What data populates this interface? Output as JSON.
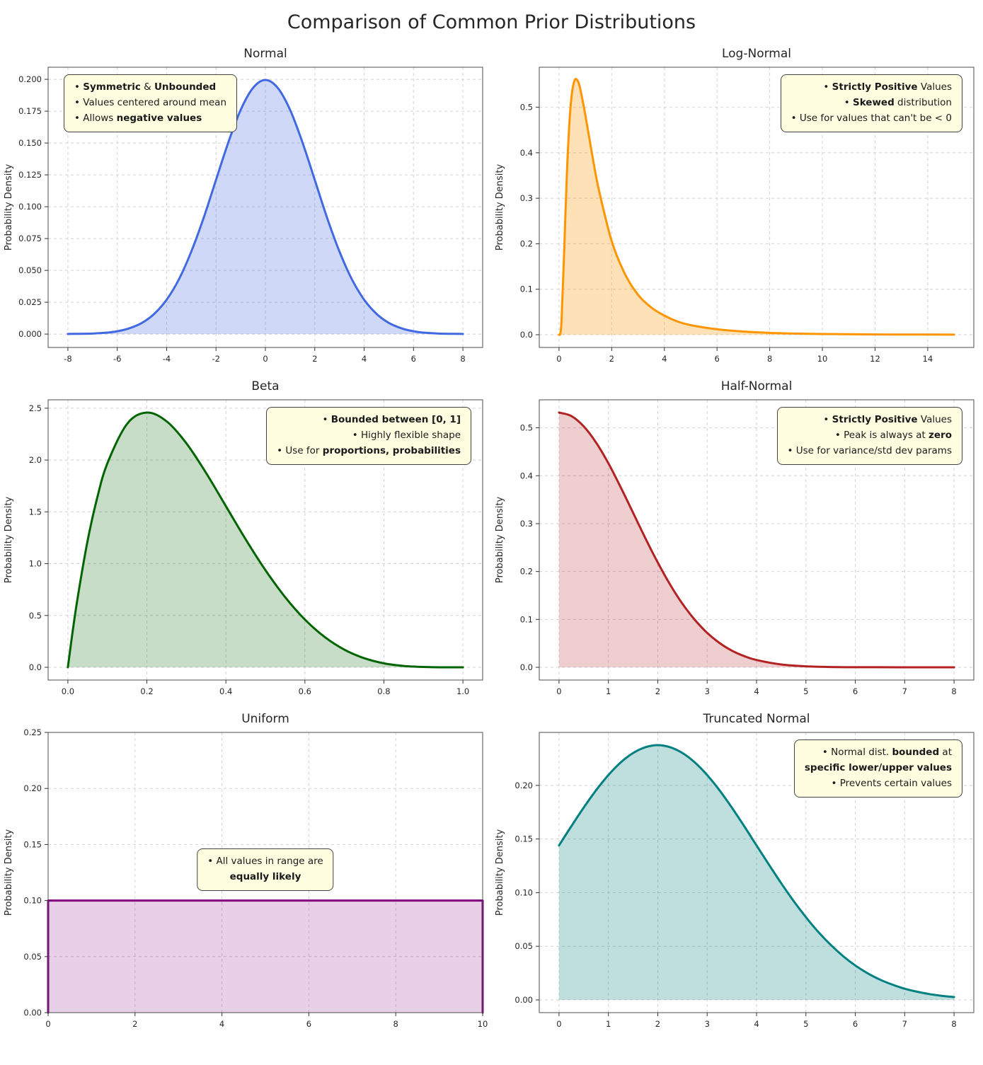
{
  "page": {
    "title": "Comparison of Common Prior Distributions"
  },
  "chart_data": [
    {
      "id": "normal",
      "type": "area",
      "title": "Normal",
      "ylabel": "Probability Density",
      "color": "#4169e1",
      "fill_opacity": 0.25,
      "line_width": 3,
      "smooth": true,
      "x": [
        -8,
        -7.5,
        -7,
        -6.5,
        -6,
        -5.5,
        -5,
        -4.5,
        -4,
        -3.5,
        -3,
        -2.5,
        -2,
        -1.5,
        -1,
        -0.5,
        0,
        0.5,
        1,
        1.5,
        2,
        2.5,
        3,
        3.5,
        4,
        4.5,
        5,
        5.5,
        6,
        6.5,
        7,
        7.5,
        8
      ],
      "y": [
        0.0001,
        0.0002,
        0.0004,
        0.001,
        0.0022,
        0.0046,
        0.0088,
        0.0159,
        0.027,
        0.0431,
        0.0648,
        0.0913,
        0.121,
        0.1506,
        0.176,
        0.1933,
        0.1995,
        0.1933,
        0.176,
        0.1506,
        0.121,
        0.0913,
        0.0648,
        0.0431,
        0.027,
        0.0159,
        0.0088,
        0.0046,
        0.0022,
        0.001,
        0.0004,
        0.0002,
        0.0001
      ],
      "xlim": [
        -8.8,
        8.8
      ],
      "ylim": [
        -0.0105,
        0.2095
      ],
      "xticks": [
        -8,
        -6,
        -4,
        -2,
        0,
        2,
        4,
        6,
        8
      ],
      "xtick_labels": [
        "-8",
        "-6",
        "-4",
        "-2",
        "0",
        "2",
        "4",
        "6",
        "8"
      ],
      "yticks": [
        0,
        0.025,
        0.05,
        0.075,
        0.1,
        0.125,
        0.15,
        0.175,
        0.2
      ],
      "ytick_labels": [
        "0.000",
        "0.025",
        "0.050",
        "0.075",
        "0.100",
        "0.125",
        "0.150",
        "0.175",
        "0.200"
      ],
      "grid": true,
      "annotation": {
        "position": "top-left",
        "align": "left",
        "lines": [
          [
            {
              "t": "• ",
              "b": 0
            },
            {
              "t": "Symmetric",
              "b": 1
            },
            {
              "t": " & ",
              "b": 0
            },
            {
              "t": "Unbounded",
              "b": 1
            }
          ],
          [
            {
              "t": "• Values centered around mean",
              "b": 0
            }
          ],
          [
            {
              "t": "• Allows ",
              "b": 0
            },
            {
              "t": "negative values",
              "b": 1
            }
          ]
        ]
      }
    },
    {
      "id": "lognormal",
      "type": "area",
      "title": "Log-Normal",
      "ylabel": "Probability Density",
      "color": "#ff9500",
      "fill_opacity": 0.28,
      "line_width": 3,
      "smooth": true,
      "x": [
        0,
        0.05,
        0.1,
        0.2,
        0.3,
        0.4,
        0.5,
        0.6,
        0.7,
        0.8,
        1,
        1.25,
        1.5,
        2,
        2.5,
        3,
        3.5,
        4,
        4.5,
        5,
        6,
        7,
        8,
        9,
        10,
        12,
        14,
        15
      ],
      "y": [
        0,
        0.003,
        0.037,
        0.193,
        0.356,
        0.471,
        0.535,
        0.56,
        0.559,
        0.542,
        0.483,
        0.399,
        0.322,
        0.206,
        0.134,
        0.088,
        0.06,
        0.042,
        0.029,
        0.021,
        0.012,
        0.007,
        0.004,
        0.0025,
        0.0016,
        0.0007,
        0.0003,
        0.0002
      ],
      "xlim": [
        -0.75,
        15.75
      ],
      "ylim": [
        -0.028,
        0.588
      ],
      "xticks": [
        0,
        2,
        4,
        6,
        8,
        10,
        12,
        14
      ],
      "xtick_labels": [
        "0",
        "2",
        "4",
        "6",
        "8",
        "10",
        "12",
        "14"
      ],
      "yticks": [
        0,
        0.1,
        0.2,
        0.3,
        0.4,
        0.5
      ],
      "ytick_labels": [
        "0.0",
        "0.1",
        "0.2",
        "0.3",
        "0.4",
        "0.5"
      ],
      "grid": true,
      "annotation": {
        "position": "top-right",
        "align": "right",
        "lines": [
          [
            {
              "t": "• ",
              "b": 0
            },
            {
              "t": "Strictly Positive",
              "b": 1
            },
            {
              "t": " Values",
              "b": 0
            }
          ],
          [
            {
              "t": "• ",
              "b": 0
            },
            {
              "t": "Skewed",
              "b": 1
            },
            {
              "t": " distribution",
              "b": 0
            }
          ],
          [
            {
              "t": "• Use for values that can't be < 0",
              "b": 0
            }
          ]
        ]
      }
    },
    {
      "id": "beta",
      "type": "area",
      "title": "Beta",
      "ylabel": "Probability Density",
      "color": "#006400",
      "fill_opacity": 0.22,
      "line_width": 3,
      "smooth": true,
      "x": [
        0,
        0.01,
        0.025,
        0.05,
        0.075,
        0.1,
        0.15,
        0.2,
        0.25,
        0.3,
        0.35,
        0.4,
        0.45,
        0.5,
        0.55,
        0.6,
        0.65,
        0.7,
        0.75,
        0.8,
        0.85,
        0.9,
        0.95,
        1
      ],
      "y": [
        0,
        0.288,
        0.678,
        1.222,
        1.647,
        1.968,
        2.349,
        2.458,
        2.373,
        2.161,
        1.874,
        1.555,
        1.235,
        0.938,
        0.677,
        0.461,
        0.293,
        0.17,
        0.088,
        0.038,
        0.013,
        0.003,
        0.0002,
        0
      ],
      "xlim": [
        -0.05,
        1.05
      ],
      "ylim": [
        -0.123,
        2.581
      ],
      "xticks": [
        0,
        0.2,
        0.4,
        0.6,
        0.8,
        1
      ],
      "xtick_labels": [
        "0.0",
        "0.2",
        "0.4",
        "0.6",
        "0.8",
        "1.0"
      ],
      "yticks": [
        0,
        0.5,
        1,
        1.5,
        2,
        2.5
      ],
      "ytick_labels": [
        "0.0",
        "0.5",
        "1.0",
        "1.5",
        "2.0",
        "2.5"
      ],
      "grid": true,
      "annotation": {
        "position": "top-right",
        "align": "right",
        "lines": [
          [
            {
              "t": "• ",
              "b": 0
            },
            {
              "t": "Bounded between [0, 1]",
              "b": 1
            }
          ],
          [
            {
              "t": "• Highly flexible shape",
              "b": 0
            }
          ],
          [
            {
              "t": "• Use for ",
              "b": 0
            },
            {
              "t": "proportions, probabilities",
              "b": 1
            }
          ]
        ]
      }
    },
    {
      "id": "halfnormal",
      "type": "area",
      "title": "Half-Normal",
      "ylabel": "Probability Density",
      "color": "#b22222",
      "fill_opacity": 0.22,
      "line_width": 3,
      "smooth": true,
      "x": [
        0,
        0.25,
        0.5,
        0.75,
        1,
        1.25,
        1.5,
        1.75,
        2,
        2.25,
        2.5,
        2.75,
        3,
        3.25,
        3.5,
        3.75,
        4,
        4.5,
        5,
        5.5,
        6,
        6.5,
        7,
        7.5,
        8
      ],
      "y": [
        0.5319,
        0.5246,
        0.5031,
        0.4694,
        0.4259,
        0.3758,
        0.3226,
        0.2693,
        0.2187,
        0.1727,
        0.1327,
        0.0991,
        0.072,
        0.0508,
        0.0349,
        0.0234,
        0.0152,
        0.0059,
        0.0021,
        0.0006,
        0.0002,
        0.0001,
        0,
        0,
        0
      ],
      "xlim": [
        -0.4,
        8.4
      ],
      "ylim": [
        -0.0266,
        0.5585
      ],
      "xticks": [
        0,
        1,
        2,
        3,
        4,
        5,
        6,
        7,
        8
      ],
      "xtick_labels": [
        "0",
        "1",
        "2",
        "3",
        "4",
        "5",
        "6",
        "7",
        "8"
      ],
      "yticks": [
        0,
        0.1,
        0.2,
        0.3,
        0.4,
        0.5
      ],
      "ytick_labels": [
        "0.0",
        "0.1",
        "0.2",
        "0.3",
        "0.4",
        "0.5"
      ],
      "grid": true,
      "annotation": {
        "position": "top-right",
        "align": "right",
        "lines": [
          [
            {
              "t": "• ",
              "b": 0
            },
            {
              "t": "Strictly Positive",
              "b": 1
            },
            {
              "t": " Values",
              "b": 0
            }
          ],
          [
            {
              "t": "• Peak is always at ",
              "b": 0
            },
            {
              "t": "zero",
              "b": 1
            }
          ],
          [
            {
              "t": "• Use for variance/std dev params",
              "b": 0
            }
          ]
        ]
      }
    },
    {
      "id": "uniform",
      "type": "area",
      "title": "Uniform",
      "ylabel": "Probability Density",
      "color": "#800080",
      "fill_opacity": 0.18,
      "line_width": 3,
      "smooth": false,
      "x": [
        0,
        0,
        10,
        10
      ],
      "y": [
        0,
        0.1,
        0.1,
        0
      ],
      "xlim": [
        0,
        10
      ],
      "ylim": [
        0,
        0.25
      ],
      "xticks": [
        0,
        2,
        4,
        6,
        8,
        10
      ],
      "xtick_labels": [
        "0",
        "2",
        "4",
        "6",
        "8",
        "10"
      ],
      "yticks": [
        0,
        0.05,
        0.1,
        0.15,
        0.2,
        0.25
      ],
      "ytick_labels": [
        "0.00",
        "0.05",
        "0.10",
        "0.15",
        "0.20",
        "0.25"
      ],
      "grid": true,
      "annotation": {
        "position": "center",
        "align": "center",
        "lines": [
          [
            {
              "t": "• All values in range are",
              "b": 0
            }
          ],
          [
            {
              "t": "equally likely",
              "b": 1
            }
          ]
        ]
      }
    },
    {
      "id": "truncated",
      "type": "area",
      "title": "Truncated Normal",
      "ylabel": "Probability Density",
      "color": "#008080",
      "fill_opacity": 0.25,
      "line_width": 3,
      "smooth": true,
      "x": [
        0,
        0.25,
        0.5,
        0.75,
        1,
        1.25,
        1.5,
        1.75,
        2,
        2.25,
        2.5,
        2.75,
        3,
        3.25,
        3.5,
        3.75,
        4,
        4.25,
        4.5,
        4.75,
        5,
        5.25,
        5.5,
        5.75,
        6,
        6.25,
        6.5,
        6.75,
        7,
        7.25,
        7.5,
        7.75,
        8
      ],
      "y": [
        0.144,
        0.162,
        0.1793,
        0.1954,
        0.2096,
        0.2214,
        0.2302,
        0.2356,
        0.2375,
        0.2356,
        0.2302,
        0.2214,
        0.2096,
        0.1954,
        0.1793,
        0.162,
        0.144,
        0.1262,
        0.1087,
        0.0923,
        0.0771,
        0.0634,
        0.0514,
        0.0409,
        0.0321,
        0.0248,
        0.0189,
        0.0142,
        0.0104,
        0.0076,
        0.0054,
        0.0038,
        0.0026
      ],
      "xlim": [
        -0.4,
        8.4
      ],
      "ylim": [
        -0.0119,
        0.2494
      ],
      "xticks": [
        0,
        1,
        2,
        3,
        4,
        5,
        6,
        7,
        8
      ],
      "xtick_labels": [
        "0",
        "1",
        "2",
        "3",
        "4",
        "5",
        "6",
        "7",
        "8"
      ],
      "yticks": [
        0,
        0.05,
        0.1,
        0.15,
        0.2
      ],
      "ytick_labels": [
        "0.00",
        "0.05",
        "0.10",
        "0.15",
        "0.20"
      ],
      "grid": true,
      "annotation": {
        "position": "top-right",
        "align": "right",
        "lines": [
          [
            {
              "t": "• Normal dist. ",
              "b": 0
            },
            {
              "t": "bounded",
              "b": 1
            },
            {
              "t": " at",
              "b": 0
            }
          ],
          [
            {
              "t": "specific lower/upper values",
              "b": 1
            }
          ],
          [
            {
              "t": "• Prevents certain values",
              "b": 0
            }
          ]
        ]
      }
    }
  ]
}
